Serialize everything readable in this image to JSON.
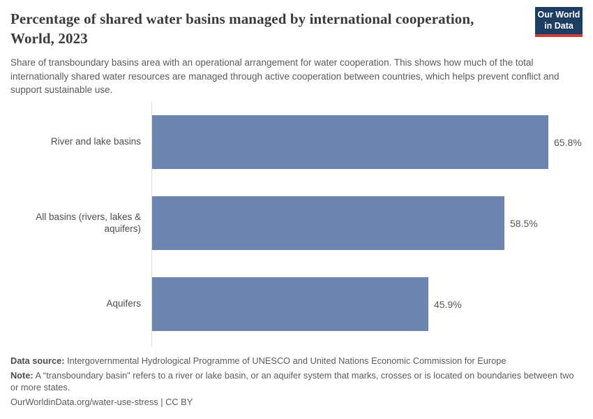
{
  "header": {
    "title": "Percentage of shared water basins managed by international cooperation, World, 2023",
    "subtitle": "Share of transboundary basins area with an operational arrangement for water cooperation. This shows how much of the total internationally shared water resources are managed through active cooperation between countries, which helps prevent conflict and support sustainable use.",
    "logo": {
      "line1": "Our World",
      "line2": "in Data"
    }
  },
  "chart_data": {
    "type": "bar",
    "orientation": "horizontal",
    "title": "Percentage of shared water basins managed by international cooperation, World, 2023",
    "categories": [
      "River and lake basins",
      "All basins (rivers, lakes & aquifers)",
      "Aquifers"
    ],
    "values": [
      65.8,
      58.5,
      45.9
    ],
    "value_labels": [
      "65.8%",
      "58.5%",
      "45.9%"
    ],
    "unit": "%",
    "xlabel": "",
    "ylabel": "",
    "xlim": [
      0,
      70
    ],
    "grid": false,
    "legend": "none",
    "bar_color": "#6d85ae"
  },
  "footer": {
    "datasource_label": "Data source:",
    "datasource_text": " Intergovernmental Hydrological Programme of UNESCO and United Nations Economic Commission for Europe",
    "note_label": "Note:",
    "note_text": " A “transboundary basin\" refers to a river or lake basin, or an aquifer system that marks, crosses or is located on boundaries between two or more states.",
    "citation": "OurWorldinData.org/water-use-stress | CC BY"
  },
  "colors": {
    "bar": "#6d85ae",
    "logo_background": "#1d3d63",
    "logo_accent": "#cf3e3e",
    "title_text": "#3b3b3b",
    "body_text": "#5b5b5b",
    "axis_line": "#dedede"
  }
}
